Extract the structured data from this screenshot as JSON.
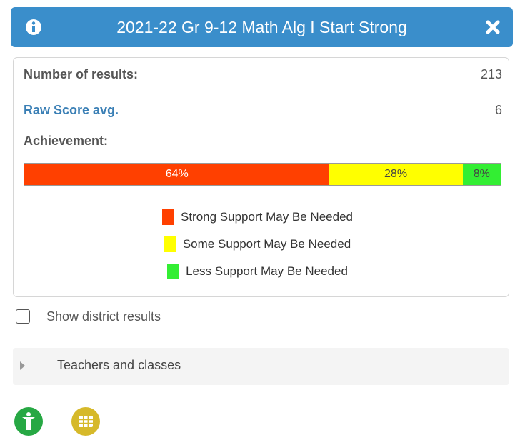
{
  "header": {
    "title": "2021-22 Gr 9-12 Math Alg I Start Strong"
  },
  "stats": [
    {
      "label": "Number of results:",
      "value": 213
    },
    {
      "label": "Raw Score avg.",
      "value": 6
    }
  ],
  "achievement": {
    "label": "Achievement:",
    "names": [
      "Strong Support May Be Needed",
      "Some Support May Be Needed",
      "Less Support May Be Needed"
    ],
    "colors": [
      "#ff4000",
      "#ffff00",
      "#33ee33"
    ],
    "values": [
      64,
      28,
      8
    ],
    "value_labels": [
      "64%",
      "28%",
      "8%"
    ]
  },
  "district": {
    "label": "Show district results"
  },
  "teachers": {
    "label": "Teachers and classes"
  }
}
